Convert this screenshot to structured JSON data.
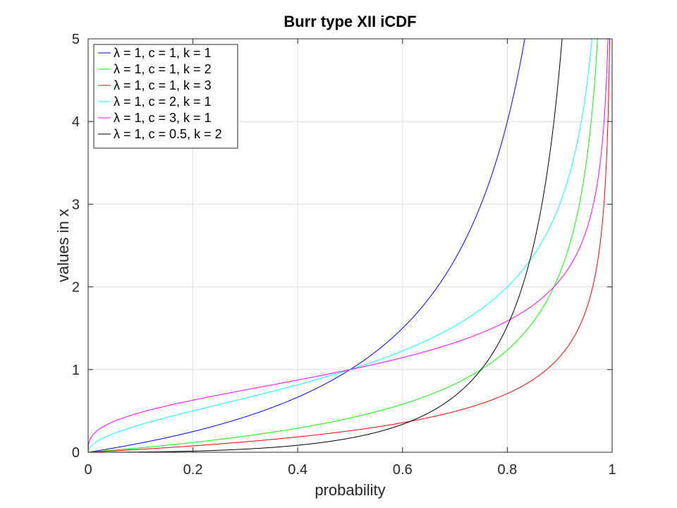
{
  "chart_data": {
    "type": "line",
    "title": "Burr type XII iCDF",
    "xlabel": "probability",
    "ylabel": "values in x",
    "xlim": [
      0,
      1
    ],
    "ylim": [
      0,
      5
    ],
    "xticks": [
      0,
      0.2,
      0.4,
      0.6,
      0.8,
      1
    ],
    "xtick_labels": [
      "0",
      "0.2",
      "0.4",
      "0.6",
      "0.8",
      "1"
    ],
    "yticks": [
      0,
      1,
      2,
      3,
      4,
      5
    ],
    "ytick_labels": [
      "0",
      "1",
      "2",
      "3",
      "4",
      "5"
    ],
    "grid": true,
    "legend_position": "top-left",
    "series": [
      {
        "name": "λ = 1, c = 1, k = 1",
        "color": "#0000ff",
        "lambda": 1,
        "c": 1,
        "k": 1,
        "x": [
          0,
          0.1,
          0.2,
          0.3,
          0.4,
          0.5,
          0.6,
          0.7,
          0.8,
          0.833
        ],
        "y": [
          0,
          0.111,
          0.25,
          0.429,
          0.667,
          1.0,
          1.5,
          2.333,
          4.0,
          5.0
        ]
      },
      {
        "name": "λ = 1, c = 1, k = 2",
        "color": "#00ff00",
        "lambda": 1,
        "c": 1,
        "k": 2,
        "x": [
          0,
          0.2,
          0.4,
          0.6,
          0.75,
          0.8,
          0.9,
          0.95,
          0.972
        ],
        "y": [
          0,
          0.118,
          0.291,
          0.581,
          1.0,
          1.236,
          2.162,
          3.472,
          5.0
        ]
      },
      {
        "name": "λ = 1, c = 1, k = 3",
        "color": "#ff0000",
        "lambda": 1,
        "c": 1,
        "k": 3,
        "x": [
          0,
          0.2,
          0.4,
          0.6,
          0.8,
          0.875,
          0.9,
          0.95,
          0.99,
          0.995
        ],
        "y": [
          0,
          0.077,
          0.186,
          0.357,
          0.71,
          1.0,
          1.154,
          1.714,
          3.642,
          5.0
        ]
      },
      {
        "name": "λ = 1, c = 2, k = 1",
        "color": "#00ffff",
        "lambda": 1,
        "c": 2,
        "k": 1,
        "x": [
          0,
          0.1,
          0.2,
          0.4,
          0.5,
          0.6,
          0.8,
          0.9,
          0.962
        ],
        "y": [
          0,
          0.333,
          0.5,
          0.816,
          1.0,
          1.225,
          2.0,
          3.0,
          5.0
        ]
      },
      {
        "name": "λ = 1, c = 3, k = 1",
        "color": "#ff00ff",
        "lambda": 1,
        "c": 3,
        "k": 1,
        "x": [
          0,
          0.1,
          0.2,
          0.4,
          0.5,
          0.6,
          0.8,
          0.9,
          0.992
        ],
        "y": [
          0,
          0.481,
          0.63,
          0.874,
          1.0,
          1.145,
          1.587,
          2.08,
          5.0
        ]
      },
      {
        "name": "λ = 1, c = 0.5, k = 2",
        "color": "#000000",
        "lambda": 1,
        "c": 0.5,
        "k": 2,
        "x": [
          0,
          0.2,
          0.4,
          0.6,
          0.75,
          0.8,
          0.85,
          0.9
        ],
        "y": [
          0,
          0.014,
          0.085,
          0.338,
          1.0,
          1.528,
          2.386,
          4.675
        ]
      }
    ]
  }
}
